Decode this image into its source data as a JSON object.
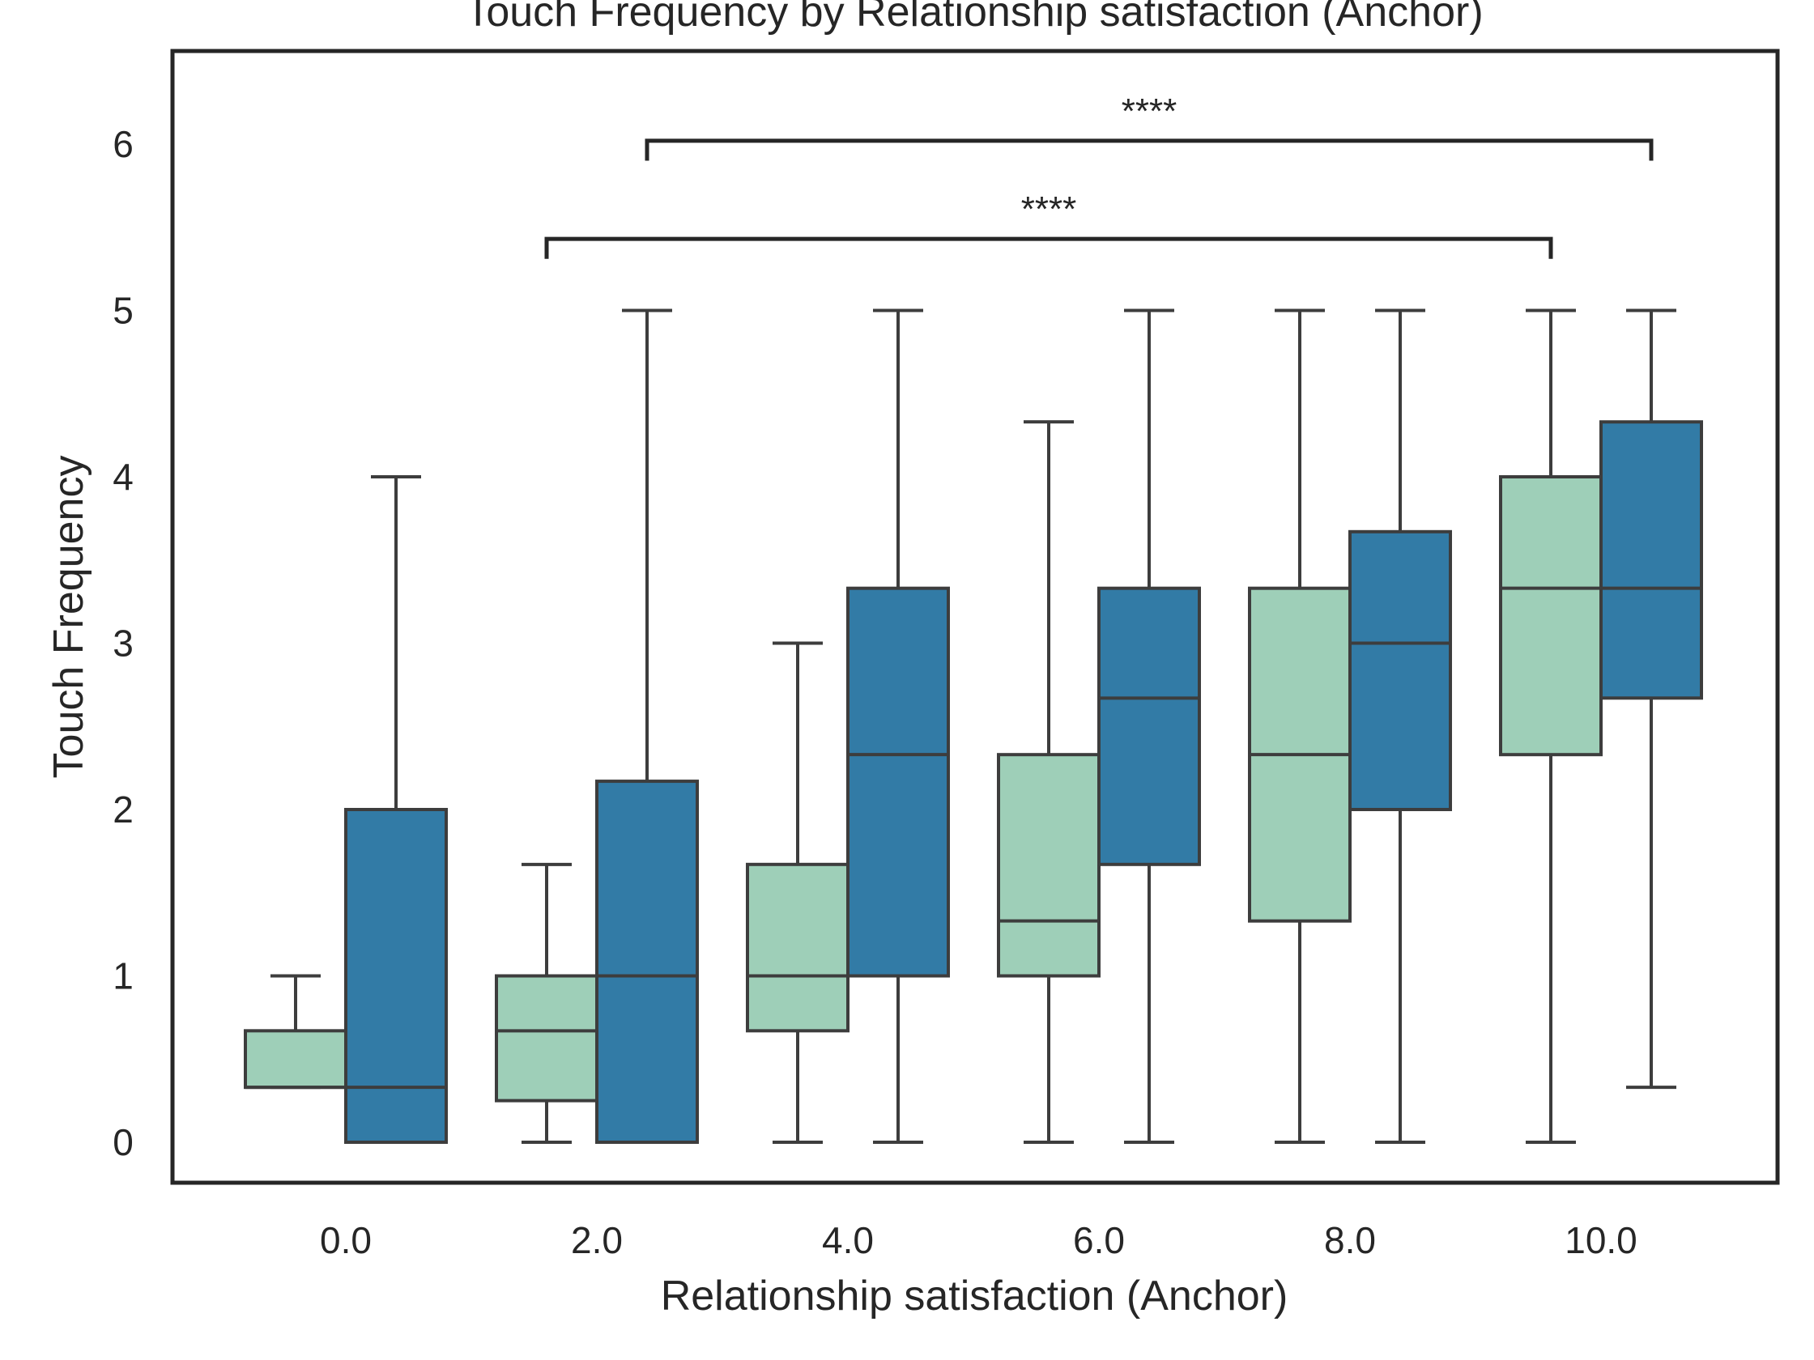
{
  "chart_data": {
    "type": "box",
    "title": "Touch Frequency by Relationship satisfaction (Anchor)",
    "xlabel": "Relationship satisfaction (Anchor)",
    "ylabel": "Touch Frequency",
    "categories": [
      "0.0",
      "2.0",
      "4.0",
      "6.0",
      "8.0",
      "10.0"
    ],
    "yticks": [
      0,
      1,
      2,
      3,
      4,
      5,
      6
    ],
    "ylim": [
      -0.25,
      6.55
    ],
    "grid": false,
    "legend": "none",
    "series": [
      {
        "color": "#9ecfb8",
        "boxes": [
          {
            "whislo": 0.33,
            "q1": 0.33,
            "med": 0.33,
            "q3": 0.67,
            "whishi": 1.0
          },
          {
            "whislo": 0.0,
            "q1": 0.25,
            "med": 0.67,
            "q3": 1.0,
            "whishi": 1.67
          },
          {
            "whislo": 0.0,
            "q1": 0.67,
            "med": 1.0,
            "q3": 1.67,
            "whishi": 3.0
          },
          {
            "whislo": 0.0,
            "q1": 1.0,
            "med": 1.33,
            "q3": 2.33,
            "whishi": 4.33
          },
          {
            "whislo": 0.0,
            "q1": 1.33,
            "med": 2.33,
            "q3": 3.33,
            "whishi": 5.0
          },
          {
            "whislo": 0.0,
            "q1": 2.33,
            "med": 3.33,
            "q3": 4.0,
            "whishi": 5.0
          }
        ]
      },
      {
        "color": "#327ba6",
        "boxes": [
          {
            "whislo": 0.0,
            "q1": 0.0,
            "med": 0.33,
            "q3": 2.0,
            "whishi": 4.0
          },
          {
            "whislo": 0.0,
            "q1": 0.0,
            "med": 1.0,
            "q3": 2.17,
            "whishi": 5.0
          },
          {
            "whislo": 0.0,
            "q1": 1.0,
            "med": 2.33,
            "q3": 3.33,
            "whishi": 5.0
          },
          {
            "whislo": 0.0,
            "q1": 1.67,
            "med": 2.67,
            "q3": 3.33,
            "whishi": 5.0
          },
          {
            "whislo": 0.0,
            "q1": 2.0,
            "med": 3.0,
            "q3": 3.67,
            "whishi": 5.0
          },
          {
            "whislo": 0.33,
            "q1": 2.67,
            "med": 3.33,
            "q3": 4.33,
            "whishi": 5.0
          }
        ]
      }
    ],
    "annotations": [
      {
        "text": "****",
        "from": {
          "category": 1,
          "series": 0
        },
        "to": {
          "category": 5,
          "series": 0
        },
        "y": 5.43,
        "tick": 0.12
      },
      {
        "text": "****",
        "from": {
          "category": 1,
          "series": 1
        },
        "to": {
          "category": 5,
          "series": 1
        },
        "y": 6.02,
        "tick": 0.12
      }
    ]
  }
}
